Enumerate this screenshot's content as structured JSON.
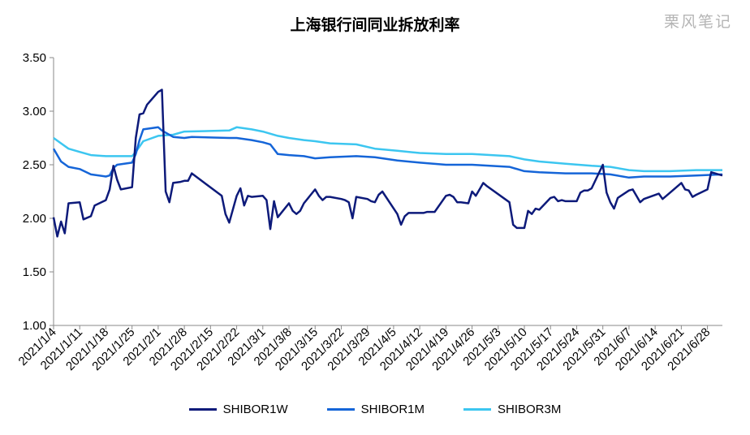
{
  "watermark": "栗风笔记",
  "chart_data": {
    "type": "line",
    "title": "上海银行间同业拆放利率",
    "ylim": [
      1.0,
      3.5
    ],
    "yticks": [
      "1.00",
      "1.50",
      "2.00",
      "2.50",
      "3.00",
      "3.50"
    ],
    "xlim": [
      "2021-01-04",
      "2021-07-02"
    ],
    "xtick_dates": [
      "2021-01-04",
      "2021-01-11",
      "2021-01-18",
      "2021-01-25",
      "2021-02-01",
      "2021-02-08",
      "2021-02-15",
      "2021-02-22",
      "2021-03-01",
      "2021-03-08",
      "2021-03-15",
      "2021-03-22",
      "2021-03-29",
      "2021-04-05",
      "2021-04-12",
      "2021-04-19",
      "2021-04-26",
      "2021-05-03",
      "2021-05-10",
      "2021-05-17",
      "2021-05-24",
      "2021-05-31",
      "2021-06-07",
      "2021-06-14",
      "2021-06-21",
      "2021-06-28"
    ],
    "xtick_labels": [
      "2021/1/4",
      "2021/1/11",
      "2021/1/18",
      "2021/1/25",
      "2021/2/1",
      "2021/2/8",
      "2021/2/15",
      "2021/2/22",
      "2021/3/1",
      "2021/3/8",
      "2021/3/15",
      "2021/3/22",
      "2021/3/29",
      "2021/4/5",
      "2021/4/12",
      "2021/4/19",
      "2021/4/26",
      "2021/5/3",
      "2021/5/10",
      "2021/5/17",
      "2021/5/24",
      "2021/5/31",
      "2021/6/7",
      "2021/6/14",
      "2021/6/21",
      "2021/6/28"
    ],
    "legend_position": "bottom",
    "grid": false,
    "series": [
      {
        "name": "SHIBOR1W",
        "color": "#0d1a7a",
        "x": [
          "2021-01-04",
          "2021-01-05",
          "2021-01-06",
          "2021-01-07",
          "2021-01-08",
          "2021-01-11",
          "2021-01-12",
          "2021-01-14",
          "2021-01-15",
          "2021-01-18",
          "2021-01-19",
          "2021-01-20",
          "2021-01-21",
          "2021-01-22",
          "2021-01-25",
          "2021-01-26",
          "2021-01-27",
          "2021-01-28",
          "2021-01-29",
          "2021-02-01",
          "2021-02-02",
          "2021-02-03",
          "2021-02-04",
          "2021-02-05",
          "2021-02-07",
          "2021-02-08",
          "2021-02-09",
          "2021-02-10",
          "2021-02-18",
          "2021-02-19",
          "2021-02-20",
          "2021-02-22",
          "2021-02-23",
          "2021-02-24",
          "2021-02-25",
          "2021-02-26",
          "2021-03-01",
          "2021-03-02",
          "2021-03-03",
          "2021-03-04",
          "2021-03-05",
          "2021-03-08",
          "2021-03-09",
          "2021-03-10",
          "2021-03-11",
          "2021-03-12",
          "2021-03-15",
          "2021-03-16",
          "2021-03-17",
          "2021-03-18",
          "2021-03-19",
          "2021-03-22",
          "2021-03-23",
          "2021-03-24",
          "2021-03-25",
          "2021-03-26",
          "2021-03-29",
          "2021-03-30",
          "2021-03-31",
          "2021-04-01",
          "2021-04-02",
          "2021-04-06",
          "2021-04-07",
          "2021-04-08",
          "2021-04-09",
          "2021-04-12",
          "2021-04-13",
          "2021-04-14",
          "2021-04-15",
          "2021-04-16",
          "2021-04-19",
          "2021-04-20",
          "2021-04-21",
          "2021-04-22",
          "2021-04-23",
          "2021-04-25",
          "2021-04-26",
          "2021-04-27",
          "2021-04-28",
          "2021-04-29",
          "2021-04-30",
          "2021-05-06",
          "2021-05-07",
          "2021-05-08",
          "2021-05-10",
          "2021-05-11",
          "2021-05-12",
          "2021-05-13",
          "2021-05-14",
          "2021-05-17",
          "2021-05-18",
          "2021-05-19",
          "2021-05-20",
          "2021-05-21",
          "2021-05-24",
          "2021-05-25",
          "2021-05-26",
          "2021-05-27",
          "2021-05-28",
          "2021-05-31",
          "2021-06-01",
          "2021-06-02",
          "2021-06-03",
          "2021-06-04",
          "2021-06-07",
          "2021-06-08",
          "2021-06-09",
          "2021-06-10",
          "2021-06-11",
          "2021-06-15",
          "2021-06-16",
          "2021-06-17",
          "2021-06-18",
          "2021-06-21",
          "2021-06-22",
          "2021-06-23",
          "2021-06-24",
          "2021-06-25",
          "2021-06-28",
          "2021-06-29",
          "2021-06-30",
          "2021-07-01",
          "2021-07-02"
        ],
        "values": [
          2.01,
          1.83,
          1.97,
          1.86,
          2.14,
          2.15,
          1.99,
          2.02,
          2.12,
          2.17,
          2.27,
          2.49,
          2.36,
          2.27,
          2.29,
          2.75,
          2.97,
          2.98,
          3.06,
          3.18,
          3.2,
          2.25,
          2.15,
          2.33,
          2.34,
          2.35,
          2.35,
          2.42,
          2.21,
          2.04,
          1.96,
          2.21,
          2.28,
          2.12,
          2.21,
          2.2,
          2.21,
          2.17,
          1.9,
          2.16,
          2.01,
          2.14,
          2.07,
          2.04,
          2.07,
          2.14,
          2.27,
          2.21,
          2.17,
          2.2,
          2.2,
          2.18,
          2.17,
          2.15,
          2.0,
          2.2,
          2.18,
          2.16,
          2.15,
          2.22,
          2.25,
          2.04,
          1.94,
          2.02,
          2.05,
          2.05,
          2.05,
          2.06,
          2.06,
          2.06,
          2.21,
          2.22,
          2.2,
          2.15,
          2.15,
          2.14,
          2.25,
          2.21,
          2.27,
          2.33,
          2.3,
          2.15,
          1.94,
          1.91,
          1.91,
          2.07,
          2.04,
          2.09,
          2.08,
          2.19,
          2.2,
          2.16,
          2.17,
          2.16,
          2.16,
          2.24,
          2.26,
          2.26,
          2.28,
          2.5,
          2.24,
          2.15,
          2.09,
          2.19,
          2.26,
          2.27,
          2.21,
          2.15,
          2.18,
          2.23,
          2.18,
          2.21,
          2.24,
          2.33,
          2.27,
          2.26,
          2.2,
          2.22,
          2.27,
          2.43,
          2.42,
          2.41,
          2.4
        ]
      },
      {
        "name": "SHIBOR1M",
        "color": "#1565d8",
        "x": [
          "2021-01-04",
          "2021-01-06",
          "2021-01-08",
          "2021-01-11",
          "2021-01-14",
          "2021-01-18",
          "2021-01-19",
          "2021-01-20",
          "2021-01-21",
          "2021-01-25",
          "2021-01-26",
          "2021-01-27",
          "2021-01-28",
          "2021-02-01",
          "2021-02-02",
          "2021-02-05",
          "2021-02-08",
          "2021-02-10",
          "2021-02-20",
          "2021-02-22",
          "2021-02-26",
          "2021-03-01",
          "2021-03-03",
          "2021-03-05",
          "2021-03-08",
          "2021-03-12",
          "2021-03-15",
          "2021-03-19",
          "2021-03-26",
          "2021-03-31",
          "2021-04-06",
          "2021-04-12",
          "2021-04-19",
          "2021-04-26",
          "2021-05-06",
          "2021-05-10",
          "2021-05-14",
          "2021-05-21",
          "2021-05-28",
          "2021-06-02",
          "2021-06-07",
          "2021-06-11",
          "2021-06-18",
          "2021-06-25",
          "2021-07-02"
        ],
        "values": [
          2.65,
          2.53,
          2.48,
          2.46,
          2.41,
          2.39,
          2.4,
          2.47,
          2.5,
          2.52,
          2.6,
          2.73,
          2.83,
          2.85,
          2.82,
          2.76,
          2.75,
          2.76,
          2.75,
          2.75,
          2.73,
          2.71,
          2.69,
          2.6,
          2.59,
          2.58,
          2.56,
          2.57,
          2.58,
          2.57,
          2.54,
          2.52,
          2.5,
          2.5,
          2.48,
          2.44,
          2.43,
          2.42,
          2.42,
          2.41,
          2.38,
          2.39,
          2.39,
          2.4,
          2.41
        ]
      },
      {
        "name": "SHIBOR3M",
        "color": "#3cc6f0",
        "x": [
          "2021-01-04",
          "2021-01-06",
          "2021-01-08",
          "2021-01-11",
          "2021-01-14",
          "2021-01-18",
          "2021-01-22",
          "2021-01-25",
          "2021-01-26",
          "2021-01-28",
          "2021-02-01",
          "2021-02-05",
          "2021-02-08",
          "2021-02-20",
          "2021-02-22",
          "2021-02-26",
          "2021-03-01",
          "2021-03-05",
          "2021-03-08",
          "2021-03-12",
          "2021-03-15",
          "2021-03-19",
          "2021-03-26",
          "2021-03-31",
          "2021-04-06",
          "2021-04-12",
          "2021-04-19",
          "2021-04-26",
          "2021-05-06",
          "2021-05-10",
          "2021-05-14",
          "2021-05-21",
          "2021-05-28",
          "2021-06-02",
          "2021-06-07",
          "2021-06-11",
          "2021-06-18",
          "2021-06-25",
          "2021-07-02"
        ],
        "values": [
          2.75,
          2.7,
          2.65,
          2.62,
          2.59,
          2.58,
          2.58,
          2.58,
          2.62,
          2.72,
          2.77,
          2.78,
          2.81,
          2.82,
          2.85,
          2.83,
          2.81,
          2.77,
          2.75,
          2.73,
          2.72,
          2.7,
          2.69,
          2.65,
          2.63,
          2.61,
          2.6,
          2.6,
          2.58,
          2.55,
          2.53,
          2.51,
          2.49,
          2.48,
          2.45,
          2.44,
          2.44,
          2.45,
          2.45
        ]
      }
    ]
  }
}
